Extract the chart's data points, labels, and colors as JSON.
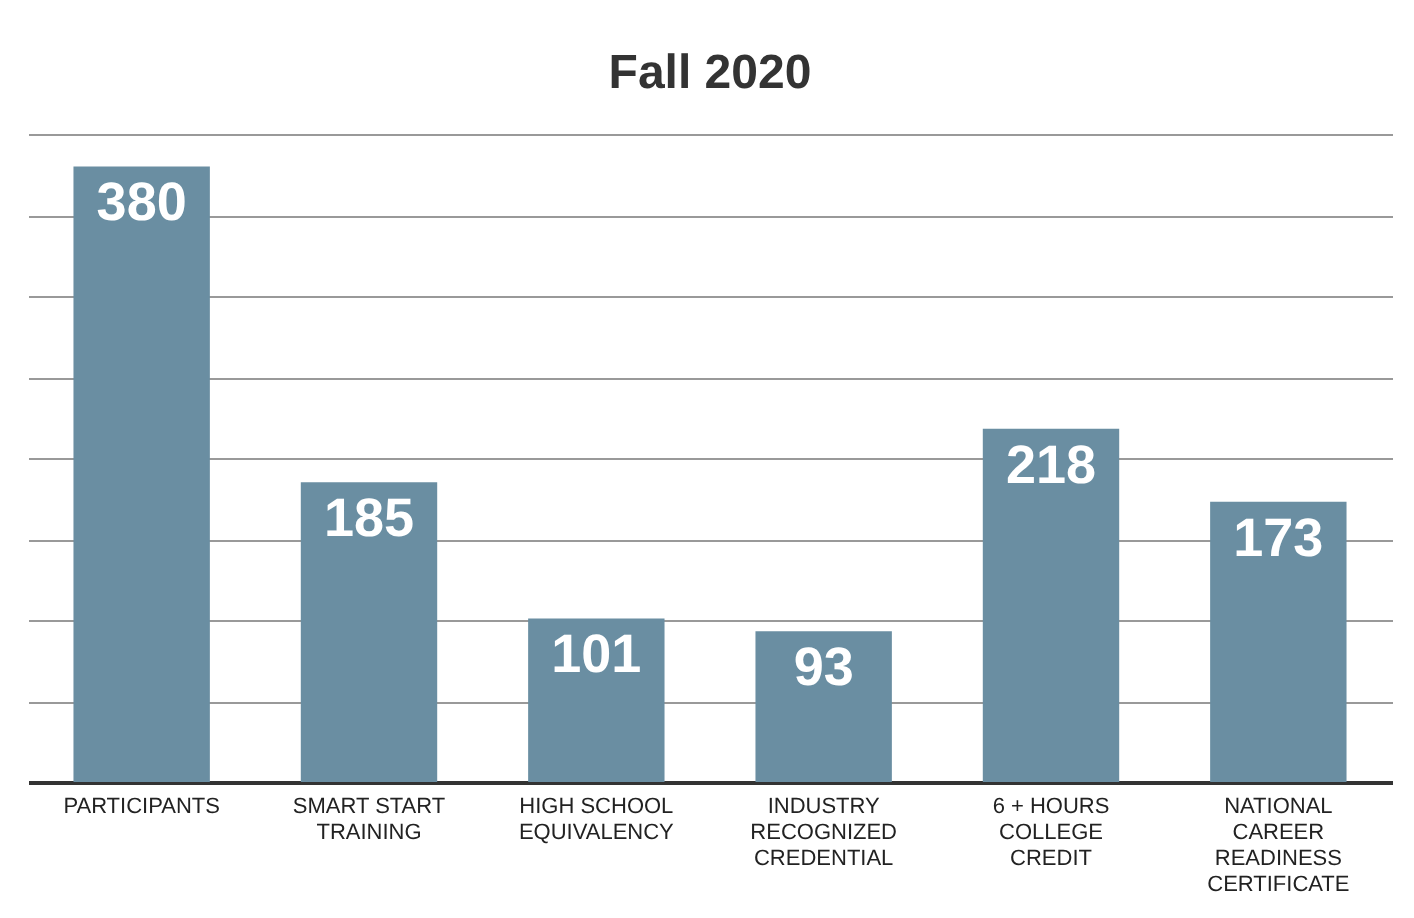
{
  "chart_data": {
    "type": "bar",
    "title": "Fall 2020",
    "categories": [
      "PARTICIPANTS",
      "SMART START TRAINING",
      "HIGH SCHOOL EQUIVALENCY",
      "INDUSTRY RECOGNIZED CREDENTIAL",
      "6 + HOURS COLLEGE CREDIT",
      "NATIONAL CAREER READINESS CERTIFICATE"
    ],
    "values": [
      380,
      185,
      101,
      93,
      218,
      173
    ],
    "color": "#6a8ea2",
    "ylim": [
      0,
      400
    ],
    "yticks": [
      {
        "value": 0,
        "label": null
      },
      {
        "value": 50,
        "label": null
      },
      {
        "value": 100,
        "label": null
      },
      {
        "value": 150,
        "label": null
      },
      {
        "value": 200,
        "label": null
      },
      {
        "value": 250,
        "label": null
      },
      {
        "value": 300,
        "label": null
      },
      {
        "value": 350,
        "label": null
      },
      {
        "value": 400,
        "label": null
      }
    ],
    "grid": "y",
    "data_labels": true,
    "tick_labels": "x"
  }
}
